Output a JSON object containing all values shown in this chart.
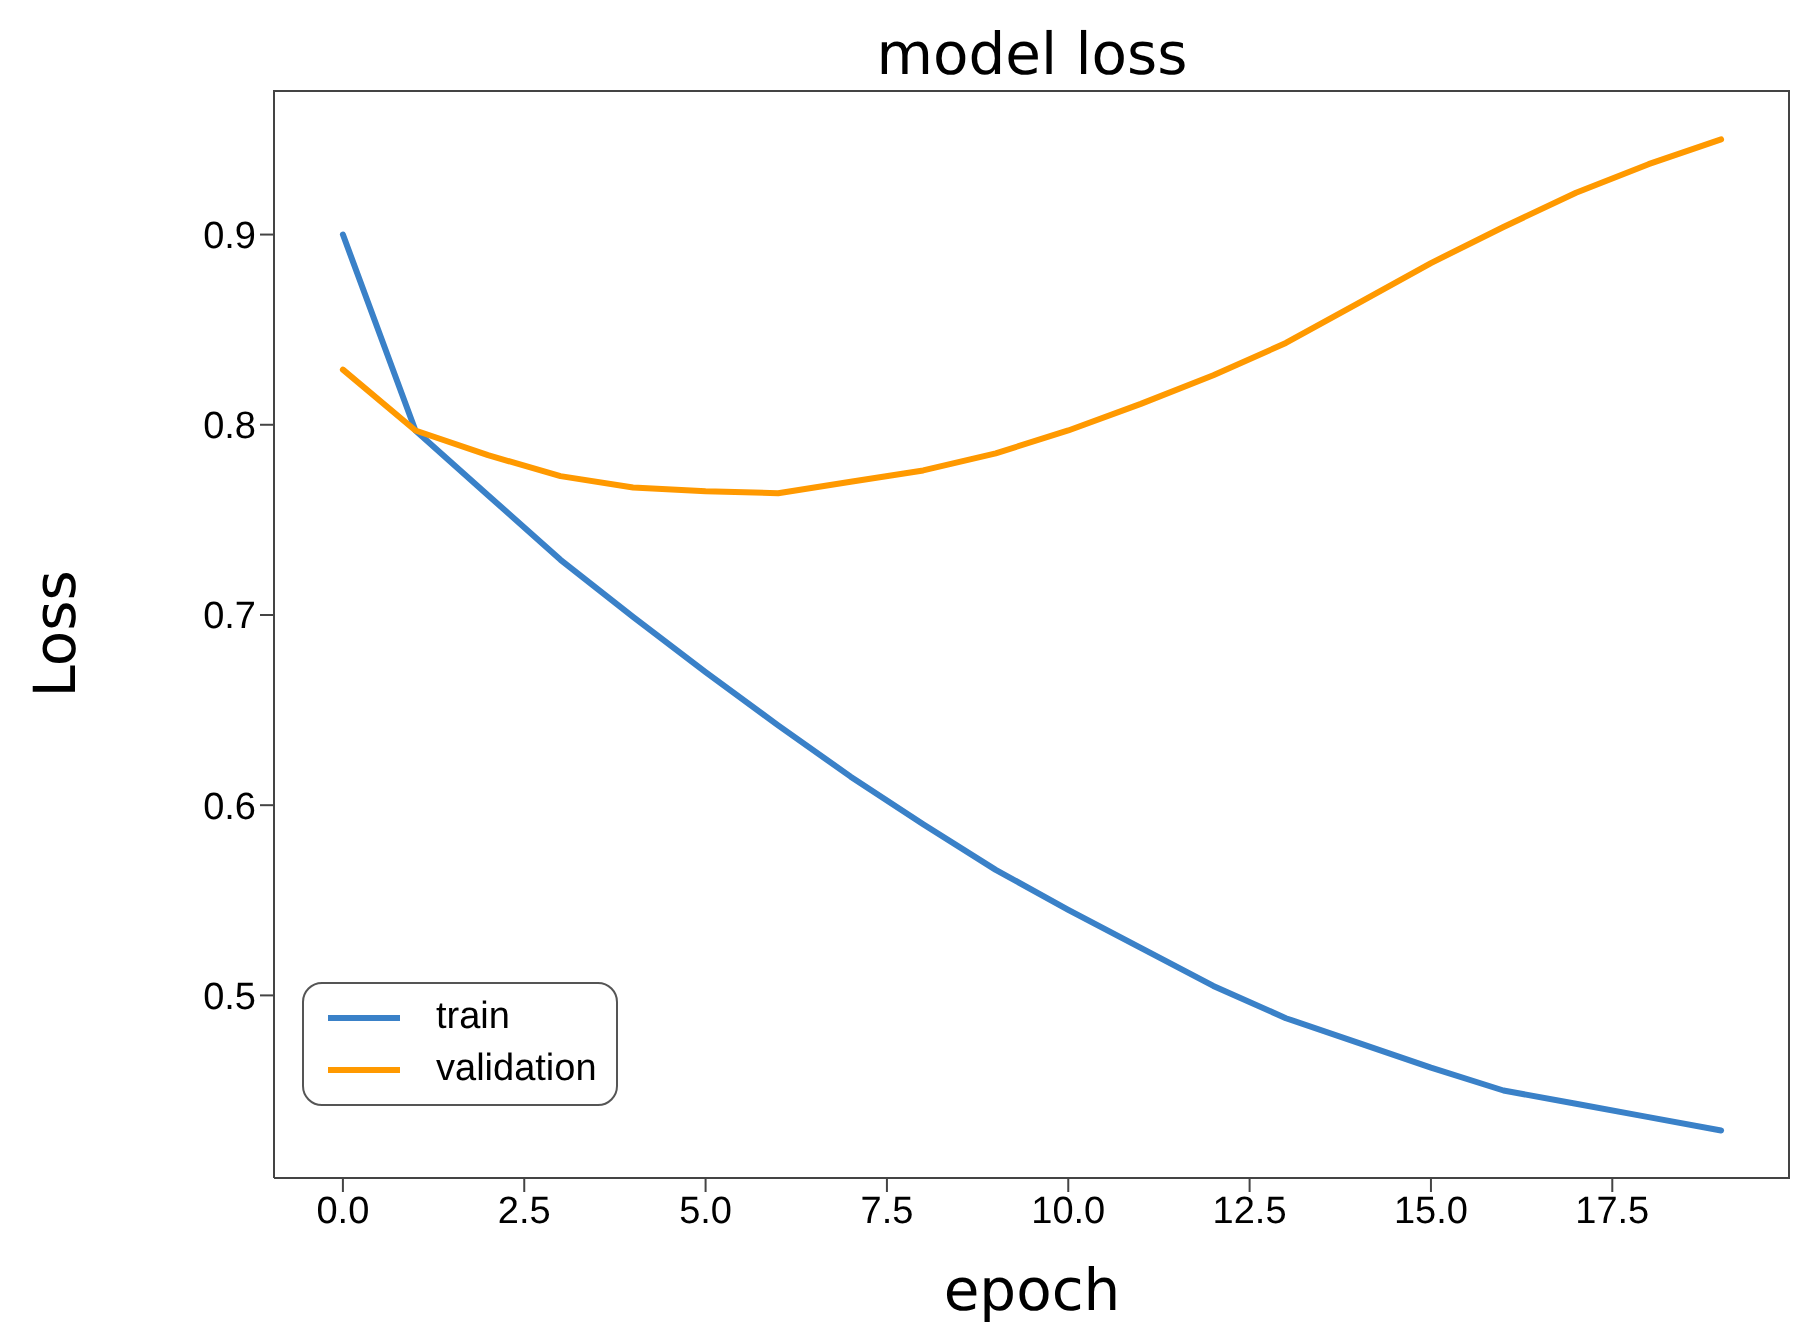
{
  "chart_data": {
    "type": "line",
    "title": "model loss",
    "xlabel": "epoch",
    "ylabel": "Loss",
    "x": [
      0,
      1,
      2,
      3,
      4,
      5,
      6,
      7,
      8,
      9,
      10,
      11,
      12,
      13,
      14,
      15,
      16,
      17,
      18,
      19
    ],
    "series": [
      {
        "name": "train",
        "color": "#3a81c8",
        "values": [
          0.9,
          0.797,
          0.763,
          0.729,
          0.699,
          0.67,
          0.642,
          0.615,
          0.59,
          0.566,
          0.545,
          0.525,
          0.505,
          0.488,
          0.475,
          0.462,
          0.45,
          0.443,
          0.436,
          0.429
        ]
      },
      {
        "name": "validation",
        "color": "#ff9900",
        "values": [
          0.829,
          0.797,
          0.784,
          0.773,
          0.767,
          0.765,
          0.764,
          0.77,
          0.776,
          0.785,
          0.797,
          0.811,
          0.826,
          0.843,
          0.864,
          0.885,
          0.904,
          0.922,
          0.937,
          0.95
        ]
      }
    ],
    "xlim": [
      -0.95,
      19.95
    ],
    "xticks": [
      {
        "value": 0,
        "label": "0.0"
      },
      2.5,
      {
        "value": 5,
        "label": "5.0"
      },
      7.5,
      {
        "value": 10,
        "label": "10.0"
      },
      12.5,
      {
        "value": 15,
        "label": "15.0"
      },
      17.5
    ],
    "ylim": [
      0.404,
      0.976
    ],
    "yticks": [
      0.5,
      0.6,
      0.7,
      0.8,
      0.9
    ],
    "grid": false,
    "legend": "bottom left",
    "marker": "none",
    "line_style": "solid"
  }
}
